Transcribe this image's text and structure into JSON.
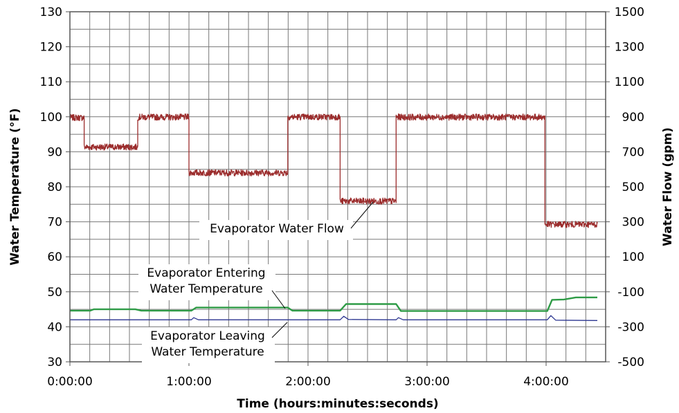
{
  "chart_data": {
    "type": "line",
    "title": "",
    "xlabel": "Time (hours:minutes:seconds)",
    "ylabel": "Water Temperature (°F)",
    "y2label": "Water Flow (gpm)",
    "x_unit": "hours",
    "xlim": [
      0,
      4.5
    ],
    "ylim": [
      30,
      130
    ],
    "y2lim": [
      -500,
      1500
    ],
    "x_ticks": [
      "0:00:00",
      "1:00:00",
      "2:00:00",
      "3:00:00",
      "4:00:00"
    ],
    "y_ticks": [
      "30",
      "40",
      "50",
      "60",
      "70",
      "80",
      "90",
      "100",
      "110",
      "120",
      "130"
    ],
    "y2_ticks": [
      "-500",
      "-300",
      "-100",
      "100",
      "300",
      "500",
      "700",
      "900",
      "1100",
      "1300",
      "1500"
    ],
    "grid": true,
    "series": [
      {
        "name": "Evaporator Water Flow",
        "axis": "right",
        "color": "#9B2C2C",
        "noise_gpm": 18,
        "x": [
          0,
          0.12,
          0.12,
          0.57,
          0.57,
          1.0,
          1.0,
          1.83,
          1.83,
          2.27,
          2.27,
          2.74,
          2.74,
          3.99,
          3.99,
          4.43
        ],
        "y": [
          895,
          895,
          727,
          727,
          898,
          898,
          580,
          580,
          899,
          899,
          418,
          418,
          898,
          898,
          285,
          285
        ]
      },
      {
        "name": "Evaporator Entering Water Temperature",
        "axis": "left",
        "color": "#2E9B46",
        "x": [
          0,
          0.17,
          0.2,
          0.55,
          0.6,
          1.02,
          1.06,
          1.83,
          1.87,
          2.27,
          2.32,
          2.74,
          2.78,
          4.01,
          4.05,
          4.15,
          4.25,
          4.43
        ],
        "y": [
          44.6,
          44.6,
          45.0,
          45.0,
          44.6,
          44.6,
          45.5,
          45.5,
          44.6,
          44.6,
          46.5,
          46.5,
          44.5,
          44.5,
          47.7,
          47.8,
          48.4,
          48.4
        ]
      },
      {
        "name": "Evaporator Leaving Water Temperature",
        "axis": "left",
        "color": "#2B3590",
        "x": [
          0,
          1.02,
          1.04,
          1.08,
          2.27,
          2.3,
          2.34,
          2.74,
          2.76,
          2.8,
          4.01,
          4.04,
          4.08,
          4.43
        ],
        "y": [
          42.0,
          42.0,
          42.6,
          42.0,
          42.0,
          43.0,
          42.1,
          42.0,
          42.6,
          42.0,
          42.0,
          43.2,
          41.9,
          41.8
        ]
      }
    ],
    "annotations": [
      {
        "lines": [
          "Evaporator Water Flow"
        ],
        "points_to": "Evaporator Water Flow"
      },
      {
        "lines": [
          "Evaporator Entering",
          "Water Temperature"
        ],
        "points_to": "Evaporator Entering Water Temperature"
      },
      {
        "lines": [
          "Evaporator Leaving",
          "Water Temperature"
        ],
        "points_to": "Evaporator Leaving Water Temperature"
      }
    ]
  }
}
